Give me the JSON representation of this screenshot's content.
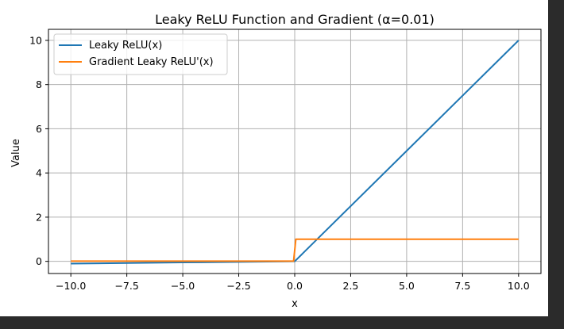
{
  "colors": {
    "background": "#2b2b2b",
    "figure": "#ffffff",
    "grid": "#b0b0b0"
  },
  "chart_data": {
    "type": "line",
    "title": "Leaky ReLU Function and Gradient (α=0.01)",
    "xlabel": "x",
    "ylabel": "Value",
    "xlim": [
      -11,
      11
    ],
    "ylim": [
      -0.55,
      10.5
    ],
    "xticks": [
      -10.0,
      -7.5,
      -5.0,
      -2.5,
      0.0,
      2.5,
      5.0,
      7.5,
      10.0
    ],
    "xtick_labels": [
      "−10.0",
      "−7.5",
      "−5.0",
      "−2.5",
      "0.0",
      "2.5",
      "5.0",
      "7.5",
      "10.0"
    ],
    "yticks": [
      0,
      2,
      4,
      6,
      8,
      10
    ],
    "ytick_labels": [
      "0",
      "2",
      "4",
      "6",
      "8",
      "10"
    ],
    "grid": true,
    "legend_position": "top-left",
    "series": [
      {
        "name": "Leaky ReLU(x)",
        "color": "#1f77b4",
        "x": [
          -10,
          -5,
          0,
          10
        ],
        "y": [
          -0.1,
          -0.05,
          0,
          10
        ]
      },
      {
        "name": "Gradient Leaky ReLU'(x)",
        "color": "#ff7f0e",
        "x": [
          -10,
          -0.05,
          0.05,
          10
        ],
        "y": [
          0.01,
          0.01,
          1,
          1
        ]
      }
    ]
  }
}
